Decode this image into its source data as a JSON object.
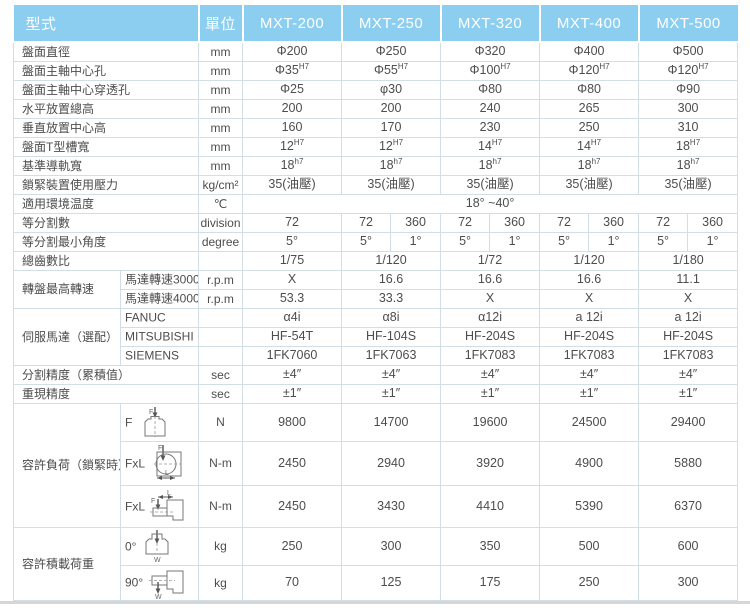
{
  "header": {
    "type": "型式",
    "unit": "單位",
    "models": [
      "MXT-200",
      "MXT-250",
      "MXT-320",
      "MXT-400",
      "MXT-500"
    ]
  },
  "colors": {
    "header_bg": "#8BCEEF",
    "header_text": "#ffffff",
    "border": "#d2dee6",
    "text": "#4d4d4d"
  },
  "rows": [
    {
      "type": "simple",
      "label": "盤面直徑",
      "unit": "mm",
      "cells": [
        "Φ200",
        "Φ250",
        "Φ320",
        "Φ400",
        "Φ500"
      ]
    },
    {
      "type": "simple",
      "label": "盤面主軸中心孔",
      "unit": "mm",
      "cells": [
        {
          "t": "Φ35",
          "s": "H7"
        },
        {
          "t": "Φ55",
          "s": "H7"
        },
        {
          "t": "Φ100",
          "s": "H7"
        },
        {
          "t": "Φ120",
          "s": "H7"
        },
        {
          "t": "Φ120",
          "s": "H7"
        }
      ]
    },
    {
      "type": "simple",
      "label": "盤面主軸中心穿透孔",
      "unit": "mm",
      "cells": [
        "Φ25",
        "φ30",
        "Φ80",
        "Φ80",
        "Φ90"
      ]
    },
    {
      "type": "simple",
      "label": "水平放置總高",
      "unit": "mm",
      "cells": [
        "200",
        "200",
        "240",
        "265",
        "300"
      ]
    },
    {
      "type": "simple",
      "label": "垂直放置中心高",
      "unit": "mm",
      "cells": [
        "160",
        "170",
        "230",
        "250",
        "310"
      ]
    },
    {
      "type": "simple",
      "label": "盤面T型槽寬",
      "unit": "mm",
      "cells": [
        {
          "t": "12",
          "s": "H7"
        },
        {
          "t": "12",
          "s": "H7"
        },
        {
          "t": "14",
          "s": "H7"
        },
        {
          "t": "14",
          "s": "H7"
        },
        {
          "t": "18",
          "s": "H7"
        }
      ]
    },
    {
      "type": "simple",
      "label": "基準導軌寬",
      "unit": "mm",
      "cells": [
        {
          "t": "18",
          "s": "h7"
        },
        {
          "t": "18",
          "s": "h7"
        },
        {
          "t": "18",
          "s": "h7"
        },
        {
          "t": "18",
          "s": "h7"
        },
        {
          "t": "18",
          "s": "h7"
        }
      ]
    },
    {
      "type": "simple",
      "label": "鎖緊裝置使用壓力",
      "unit": "kg/cm²",
      "cells": [
        "35(油壓)",
        "35(油壓)",
        "35(油壓)",
        "35(油壓)",
        "35(油壓)"
      ]
    },
    {
      "type": "merged",
      "label": "適用環境温度",
      "unit": "℃",
      "merged_value": "18° ~40°"
    },
    {
      "type": "split",
      "label": "等分割數",
      "unit": "division",
      "first": "72",
      "pairs": [
        [
          "72",
          "360"
        ],
        [
          "72",
          "360"
        ],
        [
          "72",
          "360"
        ],
        [
          "72",
          "360"
        ]
      ]
    },
    {
      "type": "split",
      "label": "等分割最小角度",
      "unit": "degree",
      "first": "5°",
      "pairs": [
        [
          "5°",
          "1°"
        ],
        [
          "5°",
          "1°"
        ],
        [
          "5°",
          "1°"
        ],
        [
          "5°",
          "1°"
        ]
      ]
    },
    {
      "type": "simple",
      "label": "總齒數比",
      "unit": "",
      "cells": [
        "1/75",
        "1/120",
        "1/72",
        "1/120",
        "1/180"
      ]
    },
    {
      "type": "group",
      "label": "轉盤最高轉速",
      "subrows": [
        {
          "sub": "馬達轉速3000",
          "unit": "r.p.m",
          "cells": [
            "X",
            "16.6",
            "16.6",
            "16.6",
            "11.1"
          ]
        },
        {
          "sub": "馬達轉速4000",
          "unit": "r.p.m",
          "cells": [
            "53.3",
            "33.3",
            "X",
            "X",
            "X"
          ]
        }
      ]
    },
    {
      "type": "group",
      "label": "伺服馬達（選配）",
      "subrows": [
        {
          "sub": "FANUC",
          "unit": "",
          "cells": [
            "α4i",
            "α8i",
            "α12i",
            "a 12i",
            "a 12i"
          ]
        },
        {
          "sub": "MITSUBISHI",
          "unit": "",
          "cells": [
            "HF-54T",
            "HF-104S",
            "HF-204S",
            "HF-204S",
            "HF-204S"
          ]
        },
        {
          "sub": "SIEMENS",
          "unit": "",
          "cells": [
            "1FK7060",
            "1FK7063",
            "1FK7083",
            "1FK7083",
            "1FK7083"
          ]
        }
      ]
    },
    {
      "type": "simple",
      "label": "分割精度（累積值）",
      "unit": "sec",
      "cells": [
        "±4″",
        "±4″",
        "±4″",
        "±4″",
        "±4″"
      ]
    },
    {
      "type": "simple",
      "label": "重現精度",
      "unit": "sec",
      "cells": [
        "±1″",
        "±1″",
        "±1″",
        "±1″",
        "±1″"
      ]
    },
    {
      "type": "group",
      "label": "容許負荷（鎖緊時）",
      "subrows": [
        {
          "sub": "F",
          "icon": "load-f-icon",
          "unit": "N",
          "cells": [
            "9800",
            "14700",
            "19600",
            "24500",
            "29400"
          ]
        },
        {
          "sub": "FxL",
          "icon": "load-fxl-front-icon",
          "unit": "N-m",
          "cells": [
            "2450",
            "2940",
            "3920",
            "4900",
            "5880"
          ]
        },
        {
          "sub": "FxL",
          "icon": "load-fxl-side-icon",
          "unit": "N-m",
          "cells": [
            "2450",
            "3430",
            "4410",
            "5390",
            "6370"
          ]
        }
      ]
    },
    {
      "type": "group",
      "label": "容許積載荷重",
      "subrows": [
        {
          "sub": "0°",
          "icon": "mount-0-icon",
          "unit": "kg",
          "cells": [
            "250",
            "300",
            "350",
            "500",
            "600"
          ]
        },
        {
          "sub": "90°",
          "icon": "mount-90-icon",
          "unit": "kg",
          "cells": [
            "70",
            "125",
            "175",
            "250",
            "300"
          ]
        }
      ]
    }
  ]
}
